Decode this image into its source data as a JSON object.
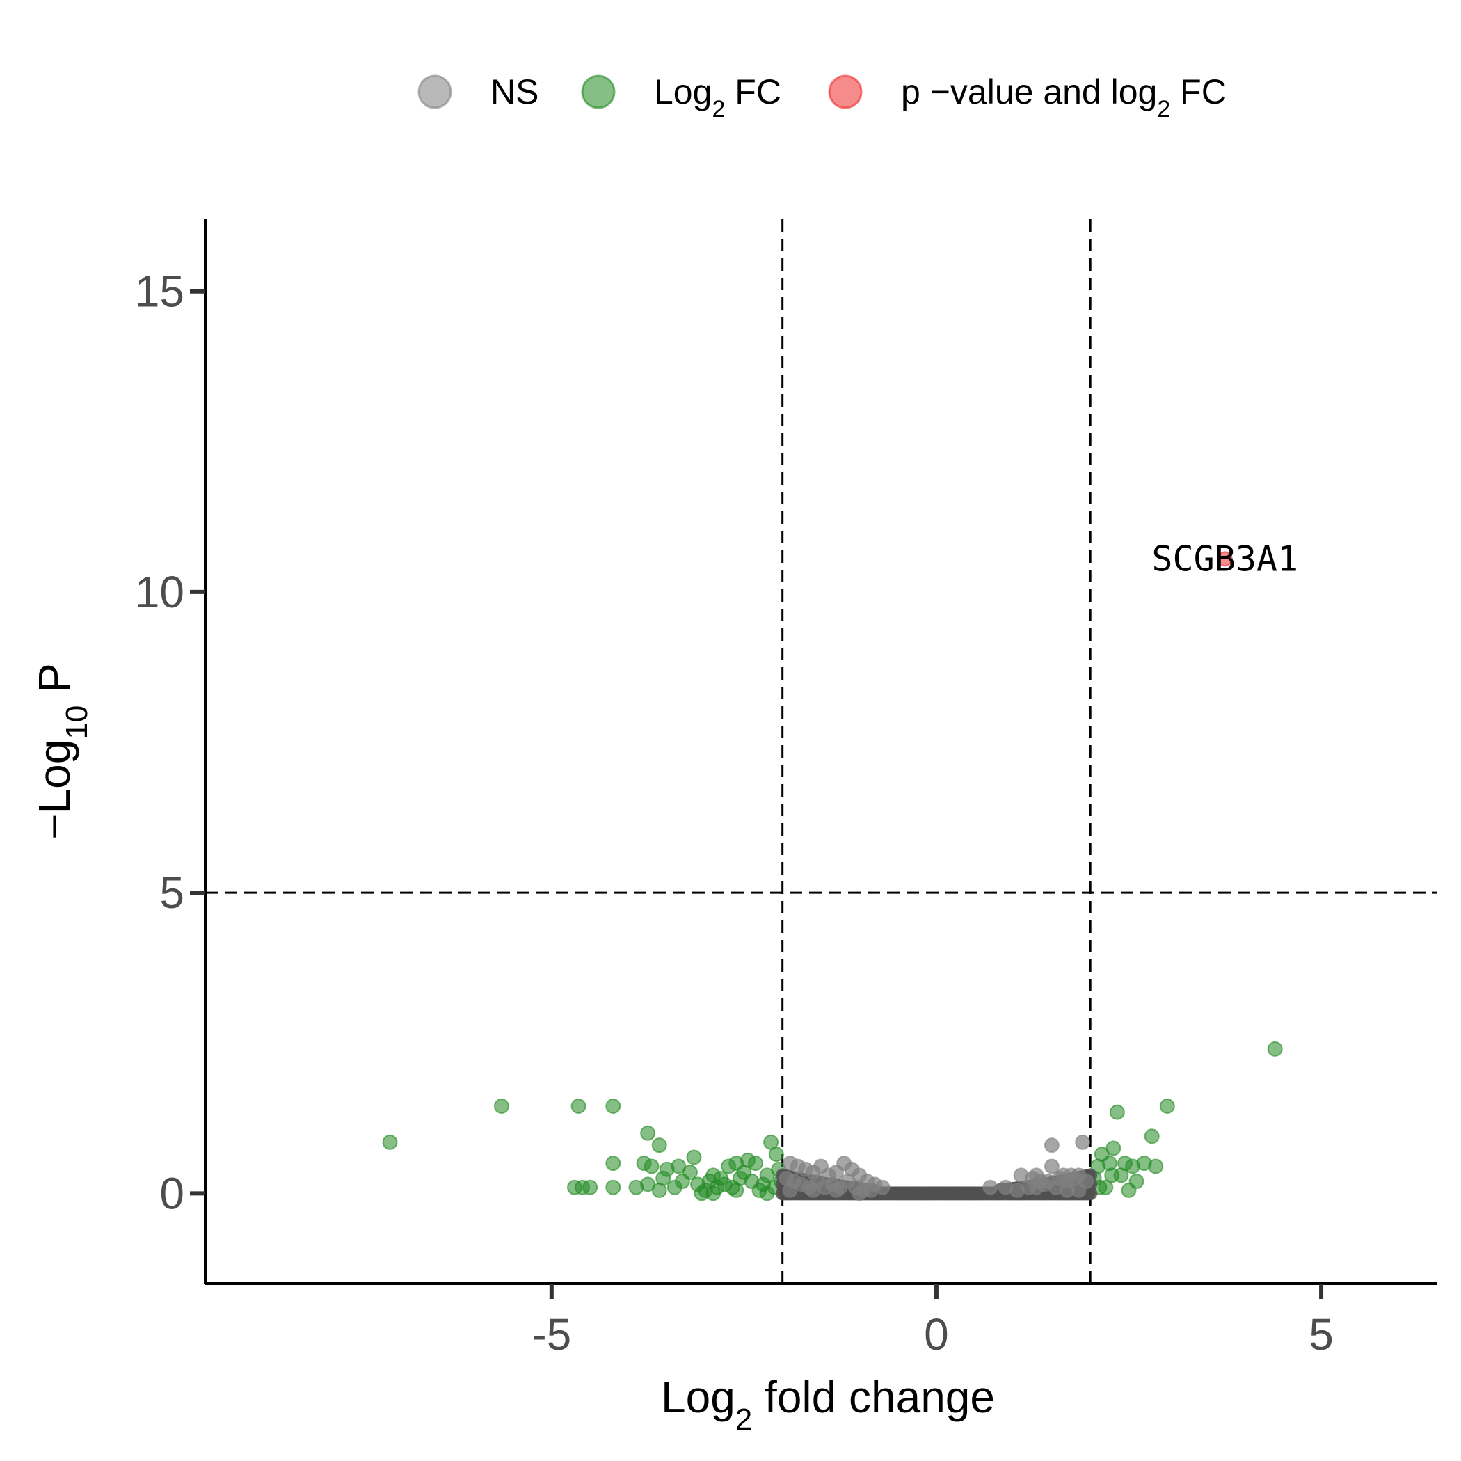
{
  "chart_data": {
    "type": "scatter",
    "title": "",
    "x_axis": {
      "label_main": "Log",
      "label_sub": "2",
      "label_rest": " fold change",
      "lim": [
        -9.5,
        6.5
      ],
      "ticks": [
        -5,
        0,
        5
      ],
      "tick_labels": [
        "-5",
        "0",
        "5"
      ]
    },
    "y_axis": {
      "label_main": "−Log",
      "label_sub": "10",
      "label_rest": " P",
      "lim": [
        -1.5,
        16.2
      ],
      "ticks": [
        0,
        5,
        10,
        15
      ],
      "tick_labels": [
        "0",
        "5",
        "10",
        "15"
      ]
    },
    "cutoffs": {
      "log2fc": [
        -2,
        2
      ],
      "neg_log10_p": 5
    },
    "legend": {
      "position": "top",
      "items": [
        {
          "key": "ns",
          "label_main": "NS",
          "label_sub": "",
          "label_rest": "",
          "color": "#808080"
        },
        {
          "key": "fc",
          "label_main": "Log",
          "label_sub": "2",
          "label_rest": " FC",
          "color": "#228b22"
        },
        {
          "key": "both",
          "label_main": "p −value and log",
          "label_sub": "2",
          "label_rest": " FC",
          "color": "#ee2c2c"
        }
      ]
    },
    "series": [
      {
        "key": "fc",
        "color": "#228b22",
        "points": [
          [
            -7.1,
            0.85
          ],
          [
            -5.65,
            1.45
          ],
          [
            -4.65,
            1.45
          ],
          [
            -4.2,
            1.45
          ],
          [
            -3.75,
            1.0
          ],
          [
            -3.6,
            0.8
          ],
          [
            -4.2,
            0.5
          ],
          [
            -3.8,
            0.5
          ],
          [
            -3.7,
            0.45
          ],
          [
            -4.7,
            0.1
          ],
          [
            -4.6,
            0.1
          ],
          [
            -4.5,
            0.1
          ],
          [
            -4.2,
            0.1
          ],
          [
            -3.9,
            0.1
          ],
          [
            -3.75,
            0.15
          ],
          [
            -3.6,
            0.05
          ],
          [
            -3.4,
            0.1
          ],
          [
            -3.3,
            0.2
          ],
          [
            -3.2,
            0.35
          ],
          [
            -3.15,
            0.6
          ],
          [
            -3.1,
            0.15
          ],
          [
            -3.05,
            0.0
          ],
          [
            -2.9,
            0.3
          ],
          [
            -2.8,
            0.25
          ],
          [
            -2.7,
            0.45
          ],
          [
            -2.65,
            0.1
          ],
          [
            -2.6,
            0.05
          ],
          [
            -2.5,
            0.35
          ],
          [
            -2.45,
            0.55
          ],
          [
            -2.4,
            0.2
          ],
          [
            -2.35,
            0.5
          ],
          [
            -2.3,
            0.05
          ],
          [
            -2.25,
            0.15
          ],
          [
            -2.2,
            0.3
          ],
          [
            -2.15,
            0.85
          ],
          [
            -2.1,
            0.1
          ],
          [
            -2.08,
            0.65
          ],
          [
            -2.05,
            0.4
          ],
          [
            -2.02,
            0.2
          ],
          [
            -3.5,
            0.4
          ],
          [
            -3.35,
            0.45
          ],
          [
            -3.0,
            0.05
          ],
          [
            -2.95,
            0.2
          ],
          [
            -2.85,
            0.1
          ],
          [
            -2.75,
            0.15
          ],
          [
            -2.55,
            0.25
          ],
          [
            -2.2,
            0.0
          ],
          [
            -3.55,
            0.25
          ],
          [
            -2.6,
            0.5
          ],
          [
            -2.9,
            0.0
          ],
          [
            2.05,
            0.25
          ],
          [
            2.1,
            0.45
          ],
          [
            2.15,
            0.65
          ],
          [
            2.2,
            0.1
          ],
          [
            2.25,
            0.5
          ],
          [
            2.3,
            0.75
          ],
          [
            2.35,
            1.35
          ],
          [
            2.4,
            0.3
          ],
          [
            2.45,
            0.5
          ],
          [
            2.5,
            0.05
          ],
          [
            2.55,
            0.45
          ],
          [
            2.6,
            0.2
          ],
          [
            2.7,
            0.5
          ],
          [
            2.8,
            0.95
          ],
          [
            2.85,
            0.45
          ],
          [
            3.0,
            1.45
          ],
          [
            4.4,
            2.4
          ],
          [
            2.12,
            0.1
          ],
          [
            2.28,
            0.3
          ]
        ]
      },
      {
        "key": "ns",
        "color": "#808080",
        "points": [
          [
            -1.9,
            0.5
          ],
          [
            -1.8,
            0.45
          ],
          [
            -1.7,
            0.4
          ],
          [
            -1.6,
            0.35
          ],
          [
            -1.5,
            0.45
          ],
          [
            -1.4,
            0.3
          ],
          [
            -1.3,
            0.35
          ],
          [
            -1.2,
            0.5
          ],
          [
            -1.1,
            0.4
          ],
          [
            -1.0,
            0.3
          ],
          [
            -0.9,
            0.2
          ],
          [
            -0.8,
            0.15
          ],
          [
            -1.95,
            0.25
          ],
          [
            -1.85,
            0.2
          ],
          [
            -1.75,
            0.15
          ],
          [
            -1.65,
            0.1
          ],
          [
            -1.55,
            0.2
          ],
          [
            -1.45,
            0.1
          ],
          [
            -1.35,
            0.15
          ],
          [
            -1.25,
            0.1
          ],
          [
            -1.15,
            0.2
          ],
          [
            -1.05,
            0.1
          ],
          [
            -0.95,
            0.05
          ],
          [
            -0.85,
            0.05
          ],
          [
            -1.9,
            0.05
          ],
          [
            -1.6,
            0.05
          ],
          [
            -1.3,
            0.05
          ],
          [
            -1.0,
            0.0
          ],
          [
            -0.7,
            0.1
          ],
          [
            0.7,
            0.1
          ],
          [
            0.9,
            0.1
          ],
          [
            1.05,
            0.05
          ],
          [
            1.1,
            0.3
          ],
          [
            1.2,
            0.1
          ],
          [
            1.25,
            0.25
          ],
          [
            1.3,
            0.1
          ],
          [
            1.35,
            0.2
          ],
          [
            1.4,
            0.15
          ],
          [
            1.45,
            0.2
          ],
          [
            1.5,
            0.45
          ],
          [
            1.5,
            0.8
          ],
          [
            1.6,
            0.25
          ],
          [
            1.65,
            0.3
          ],
          [
            1.7,
            0.2
          ],
          [
            1.75,
            0.3
          ],
          [
            1.8,
            0.25
          ],
          [
            1.85,
            0.3
          ],
          [
            1.9,
            0.85
          ],
          [
            1.95,
            0.2
          ],
          [
            1.55,
            0.1
          ],
          [
            1.7,
            0.05
          ],
          [
            1.85,
            0.05
          ],
          [
            1.3,
            0.3
          ]
        ],
        "band": {
          "x_from": -2.0,
          "x_to": 2.0,
          "y_bottom": 0.0,
          "y_top_at_edges": 0.3
        }
      },
      {
        "key": "both",
        "color": "#ee2c2c",
        "points": [
          [
            3.75,
            10.55
          ]
        ]
      }
    ],
    "annotations": [
      {
        "text": "SCGB3A1",
        "x": 3.75,
        "y": 10.55
      }
    ]
  }
}
